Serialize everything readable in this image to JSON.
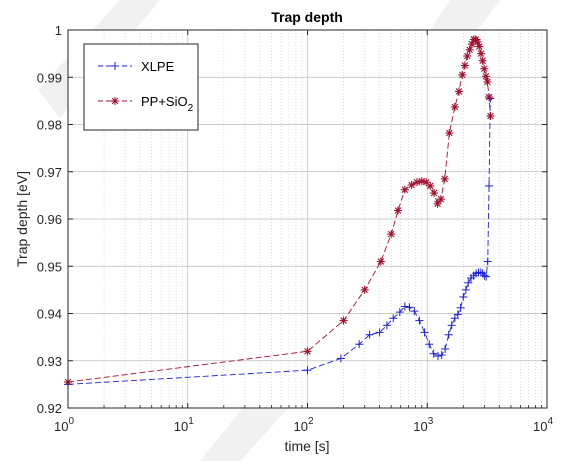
{
  "chart_data": {
    "type": "line",
    "title": "Trap depth",
    "xlabel": "time [s]",
    "ylabel": "Trap depth [eV]",
    "x_scale": "log",
    "xlim": [
      1,
      10000
    ],
    "ylim": [
      0.92,
      1.0
    ],
    "x_ticks": [
      {
        "value": 1,
        "base": "10",
        "exp": "0"
      },
      {
        "value": 10,
        "base": "10",
        "exp": "1"
      },
      {
        "value": 100,
        "base": "10",
        "exp": "2"
      },
      {
        "value": 1000,
        "base": "10",
        "exp": "3"
      },
      {
        "value": 10000,
        "base": "10",
        "exp": "4"
      }
    ],
    "y_ticks": [
      0.92,
      0.93,
      0.94,
      0.95,
      0.96,
      0.97,
      0.98,
      0.99,
      1.0
    ],
    "y_tick_labels": [
      "0.92",
      "0.93",
      "0.94",
      "0.95",
      "0.96",
      "0.97",
      "0.98",
      "0.99",
      "1"
    ],
    "grid": true,
    "minor_grid": true,
    "legend_position": "top-left",
    "series": [
      {
        "name": "XLPE",
        "color": "#1f1fd6",
        "marker": "plus",
        "line_style": "dashed",
        "points": [
          [
            1,
            0.925
          ],
          [
            100,
            0.928
          ],
          [
            190,
            0.9305
          ],
          [
            270,
            0.9335
          ],
          [
            330,
            0.9355
          ],
          [
            400,
            0.936
          ],
          [
            460,
            0.9375
          ],
          [
            520,
            0.939
          ],
          [
            590,
            0.9403
          ],
          [
            650,
            0.9415
          ],
          [
            710,
            0.9413
          ],
          [
            780,
            0.9405
          ],
          [
            860,
            0.9385
          ],
          [
            950,
            0.936
          ],
          [
            1040,
            0.9335
          ],
          [
            1130,
            0.9315
          ],
          [
            1230,
            0.931
          ],
          [
            1320,
            0.9312
          ],
          [
            1410,
            0.9325
          ],
          [
            1510,
            0.9355
          ],
          [
            1600,
            0.9375
          ],
          [
            1700,
            0.939
          ],
          [
            1800,
            0.9398
          ],
          [
            1900,
            0.9412
          ],
          [
            2000,
            0.9435
          ],
          [
            2100,
            0.945
          ],
          [
            2200,
            0.9465
          ],
          [
            2320,
            0.9475
          ],
          [
            2440,
            0.948
          ],
          [
            2560,
            0.9485
          ],
          [
            2680,
            0.9487
          ],
          [
            2800,
            0.9487
          ],
          [
            2900,
            0.9485
          ],
          [
            3000,
            0.948
          ],
          [
            3100,
            0.9478
          ],
          [
            3200,
            0.951
          ],
          [
            3280,
            0.967
          ],
          [
            3360,
            0.9855
          ]
        ]
      },
      {
        "name": "PP+SiO",
        "name_sub": "2",
        "color": "#a01030",
        "marker": "asterisk",
        "line_style": "dashed",
        "points": [
          [
            1,
            0.9255
          ],
          [
            100,
            0.932
          ],
          [
            200,
            0.9385
          ],
          [
            300,
            0.945
          ],
          [
            410,
            0.951
          ],
          [
            500,
            0.9568
          ],
          [
            570,
            0.9618
          ],
          [
            650,
            0.9662
          ],
          [
            740,
            0.9672
          ],
          [
            820,
            0.9678
          ],
          [
            900,
            0.968
          ],
          [
            980,
            0.9678
          ],
          [
            1060,
            0.967
          ],
          [
            1140,
            0.9655
          ],
          [
            1220,
            0.9632
          ],
          [
            1300,
            0.9642
          ],
          [
            1400,
            0.9685
          ],
          [
            1530,
            0.9782
          ],
          [
            1700,
            0.9837
          ],
          [
            1840,
            0.987
          ],
          [
            1960,
            0.9905
          ],
          [
            2060,
            0.9925
          ],
          [
            2160,
            0.9945
          ],
          [
            2260,
            0.9958
          ],
          [
            2360,
            0.997
          ],
          [
            2450,
            0.998
          ],
          [
            2540,
            0.998
          ],
          [
            2630,
            0.9975
          ],
          [
            2720,
            0.9965
          ],
          [
            2810,
            0.995
          ],
          [
            2900,
            0.9935
          ],
          [
            2990,
            0.9918
          ],
          [
            3090,
            0.9902
          ],
          [
            3180,
            0.989
          ],
          [
            3280,
            0.9858
          ],
          [
            3370,
            0.9818
          ]
        ]
      }
    ]
  }
}
